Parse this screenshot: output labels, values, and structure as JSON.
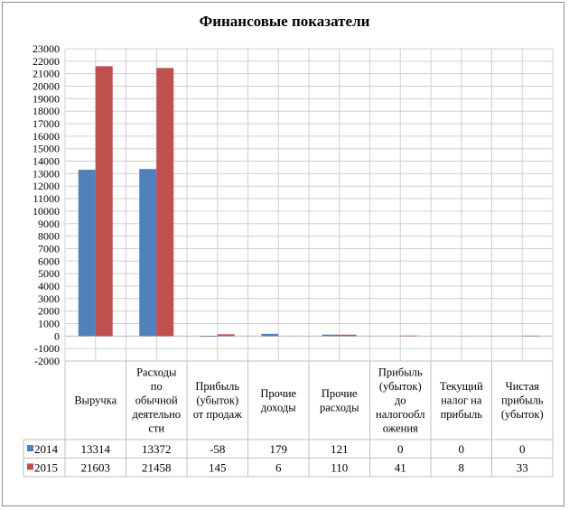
{
  "chart_data": {
    "type": "bar",
    "title": "Финансовые показатели",
    "categories": [
      [
        "Выручка"
      ],
      [
        "Расходы",
        "по",
        "обычной",
        "деятельно",
        "сти"
      ],
      [
        "Прибыль",
        "(убыток)",
        "от продаж"
      ],
      [
        "Прочие",
        "доходы"
      ],
      [
        "Прочие",
        "расходы"
      ],
      [
        "Прибыль",
        "(убыток)",
        "до",
        "налогообл",
        "ожения"
      ],
      [
        "Текущий",
        "налог на",
        "прибыль"
      ],
      [
        "Чистая",
        "прибыль",
        "(убыток)"
      ]
    ],
    "series": [
      {
        "name": "2014",
        "color": "#4f81bd",
        "values": [
          13314,
          13372,
          -58,
          179,
          121,
          0,
          0,
          0
        ]
      },
      {
        "name": "2015",
        "color": "#c0504d",
        "values": [
          21603,
          21458,
          145,
          6,
          110,
          41,
          8,
          33
        ]
      }
    ],
    "ylim": [
      -2000,
      23000
    ],
    "ytick_step": 1000,
    "grid": true,
    "legend": "data-table",
    "data_table": true
  }
}
